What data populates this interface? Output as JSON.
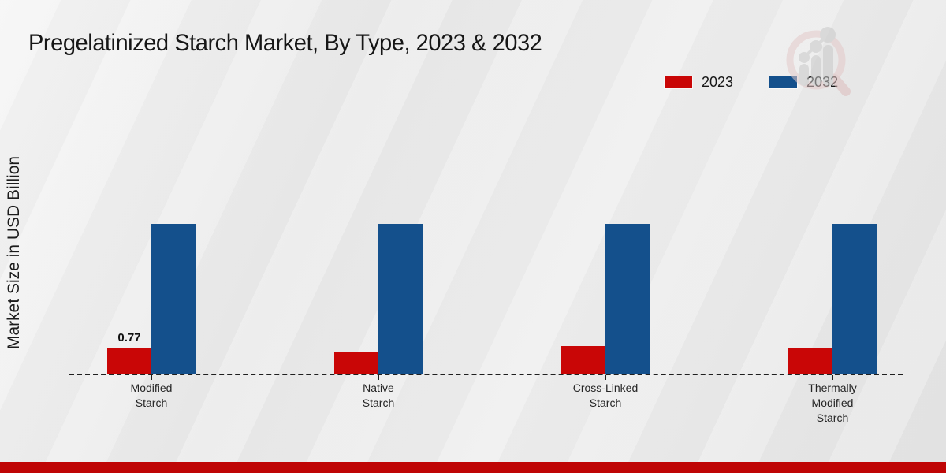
{
  "chart_data": {
    "type": "bar",
    "title": "Pregelatinized Starch Market, By Type, 2023 & 2032",
    "xlabel": "",
    "ylabel": "Market Size in USD Billion",
    "categories": [
      "Modified Starch",
      "Native Starch",
      "Cross-Linked Starch",
      "Thermally Modified Starch"
    ],
    "category_lines": [
      [
        "Modified",
        "Starch"
      ],
      [
        "Native",
        "Starch"
      ],
      [
        "Cross-Linked",
        "Starch"
      ],
      [
        "Thermally",
        "Modified",
        "Starch"
      ]
    ],
    "series": [
      {
        "name": "2023",
        "color": "#c90606",
        "values": [
          0.77,
          0.65,
          0.84,
          0.79
        ]
      },
      {
        "name": "2032",
        "color": "#14508c",
        "values": [
          4.45,
          4.45,
          4.45,
          4.45
        ]
      }
    ],
    "data_labels": [
      {
        "series": "2023",
        "category_index": 0,
        "text": "0.77"
      }
    ],
    "legend_position": "top-right",
    "grid": false,
    "baseline_style": "dashed",
    "ylim": [
      0,
      4.6
    ]
  },
  "colors": {
    "bar_2023": "#c90606",
    "bar_2032": "#14508c",
    "footer_strip": "#bf0505",
    "background": "#e9e9e9",
    "axis_line": "#1f1f1f",
    "watermark_gray": "#c8c8c8",
    "watermark_pink": "#e4c9c9"
  },
  "watermark": {
    "name": "magnifier-growth-chart-logo"
  }
}
